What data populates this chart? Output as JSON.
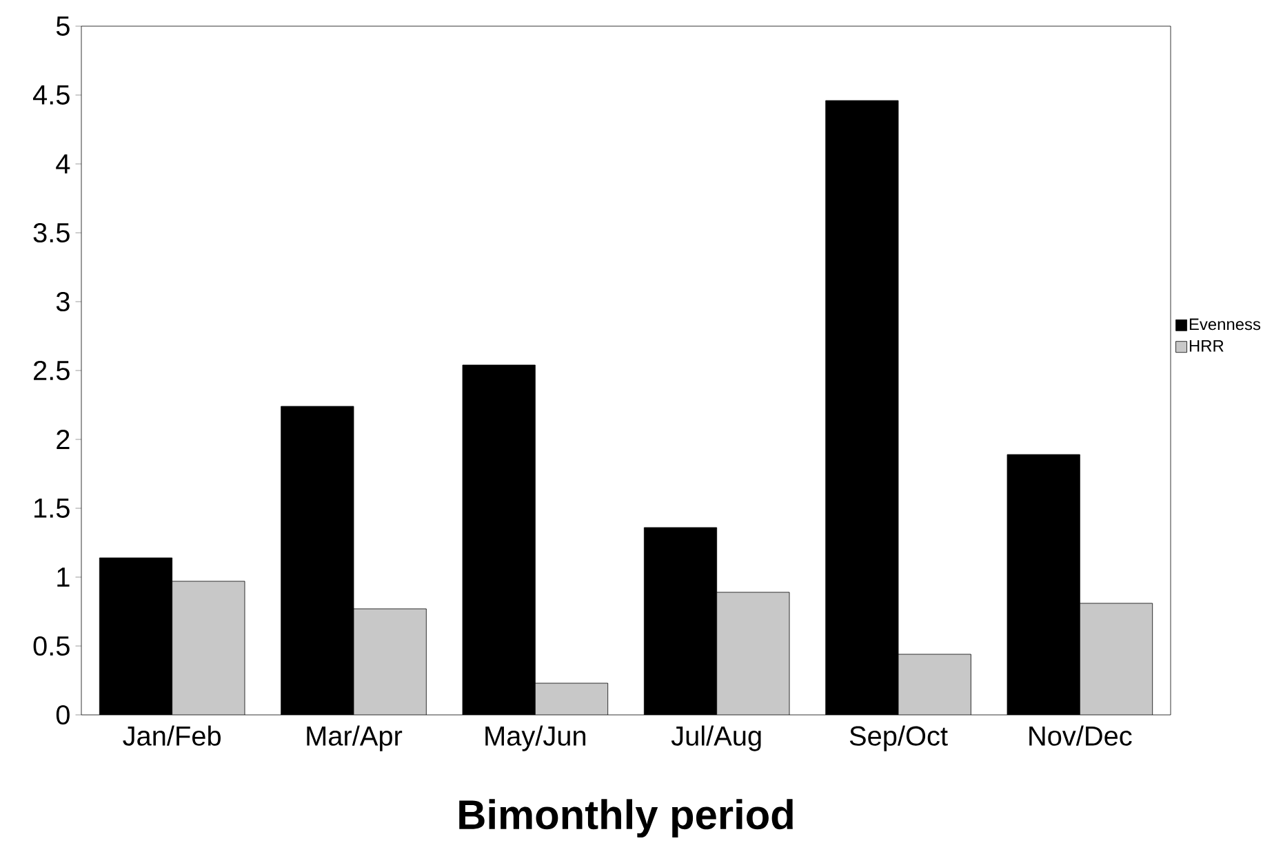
{
  "chart_data": {
    "type": "bar",
    "xlabel": "**Bimonthly period**",
    "categories": [
      "Jan/Feb",
      "Mar/Apr",
      "May/Jun",
      "Jul/Aug",
      "Sep/Oct",
      "Nov/Dec"
    ],
    "series": [
      {
        "name": "Evenness",
        "color": "#000000",
        "values": [
          1.14,
          2.24,
          2.54,
          1.36,
          4.46,
          1.89
        ]
      },
      {
        "name": "HRR",
        "color": "#c8c8c8",
        "values": [
          0.97,
          0.77,
          0.23,
          0.89,
          0.44,
          0.81
        ]
      }
    ],
    "ylim": [
      0,
      5
    ],
    "yticks": [
      0,
      0.5,
      1,
      1.5,
      2,
      2.5,
      3,
      3.5,
      4,
      4.5,
      5
    ],
    "legend": "right",
    "grid": false
  }
}
